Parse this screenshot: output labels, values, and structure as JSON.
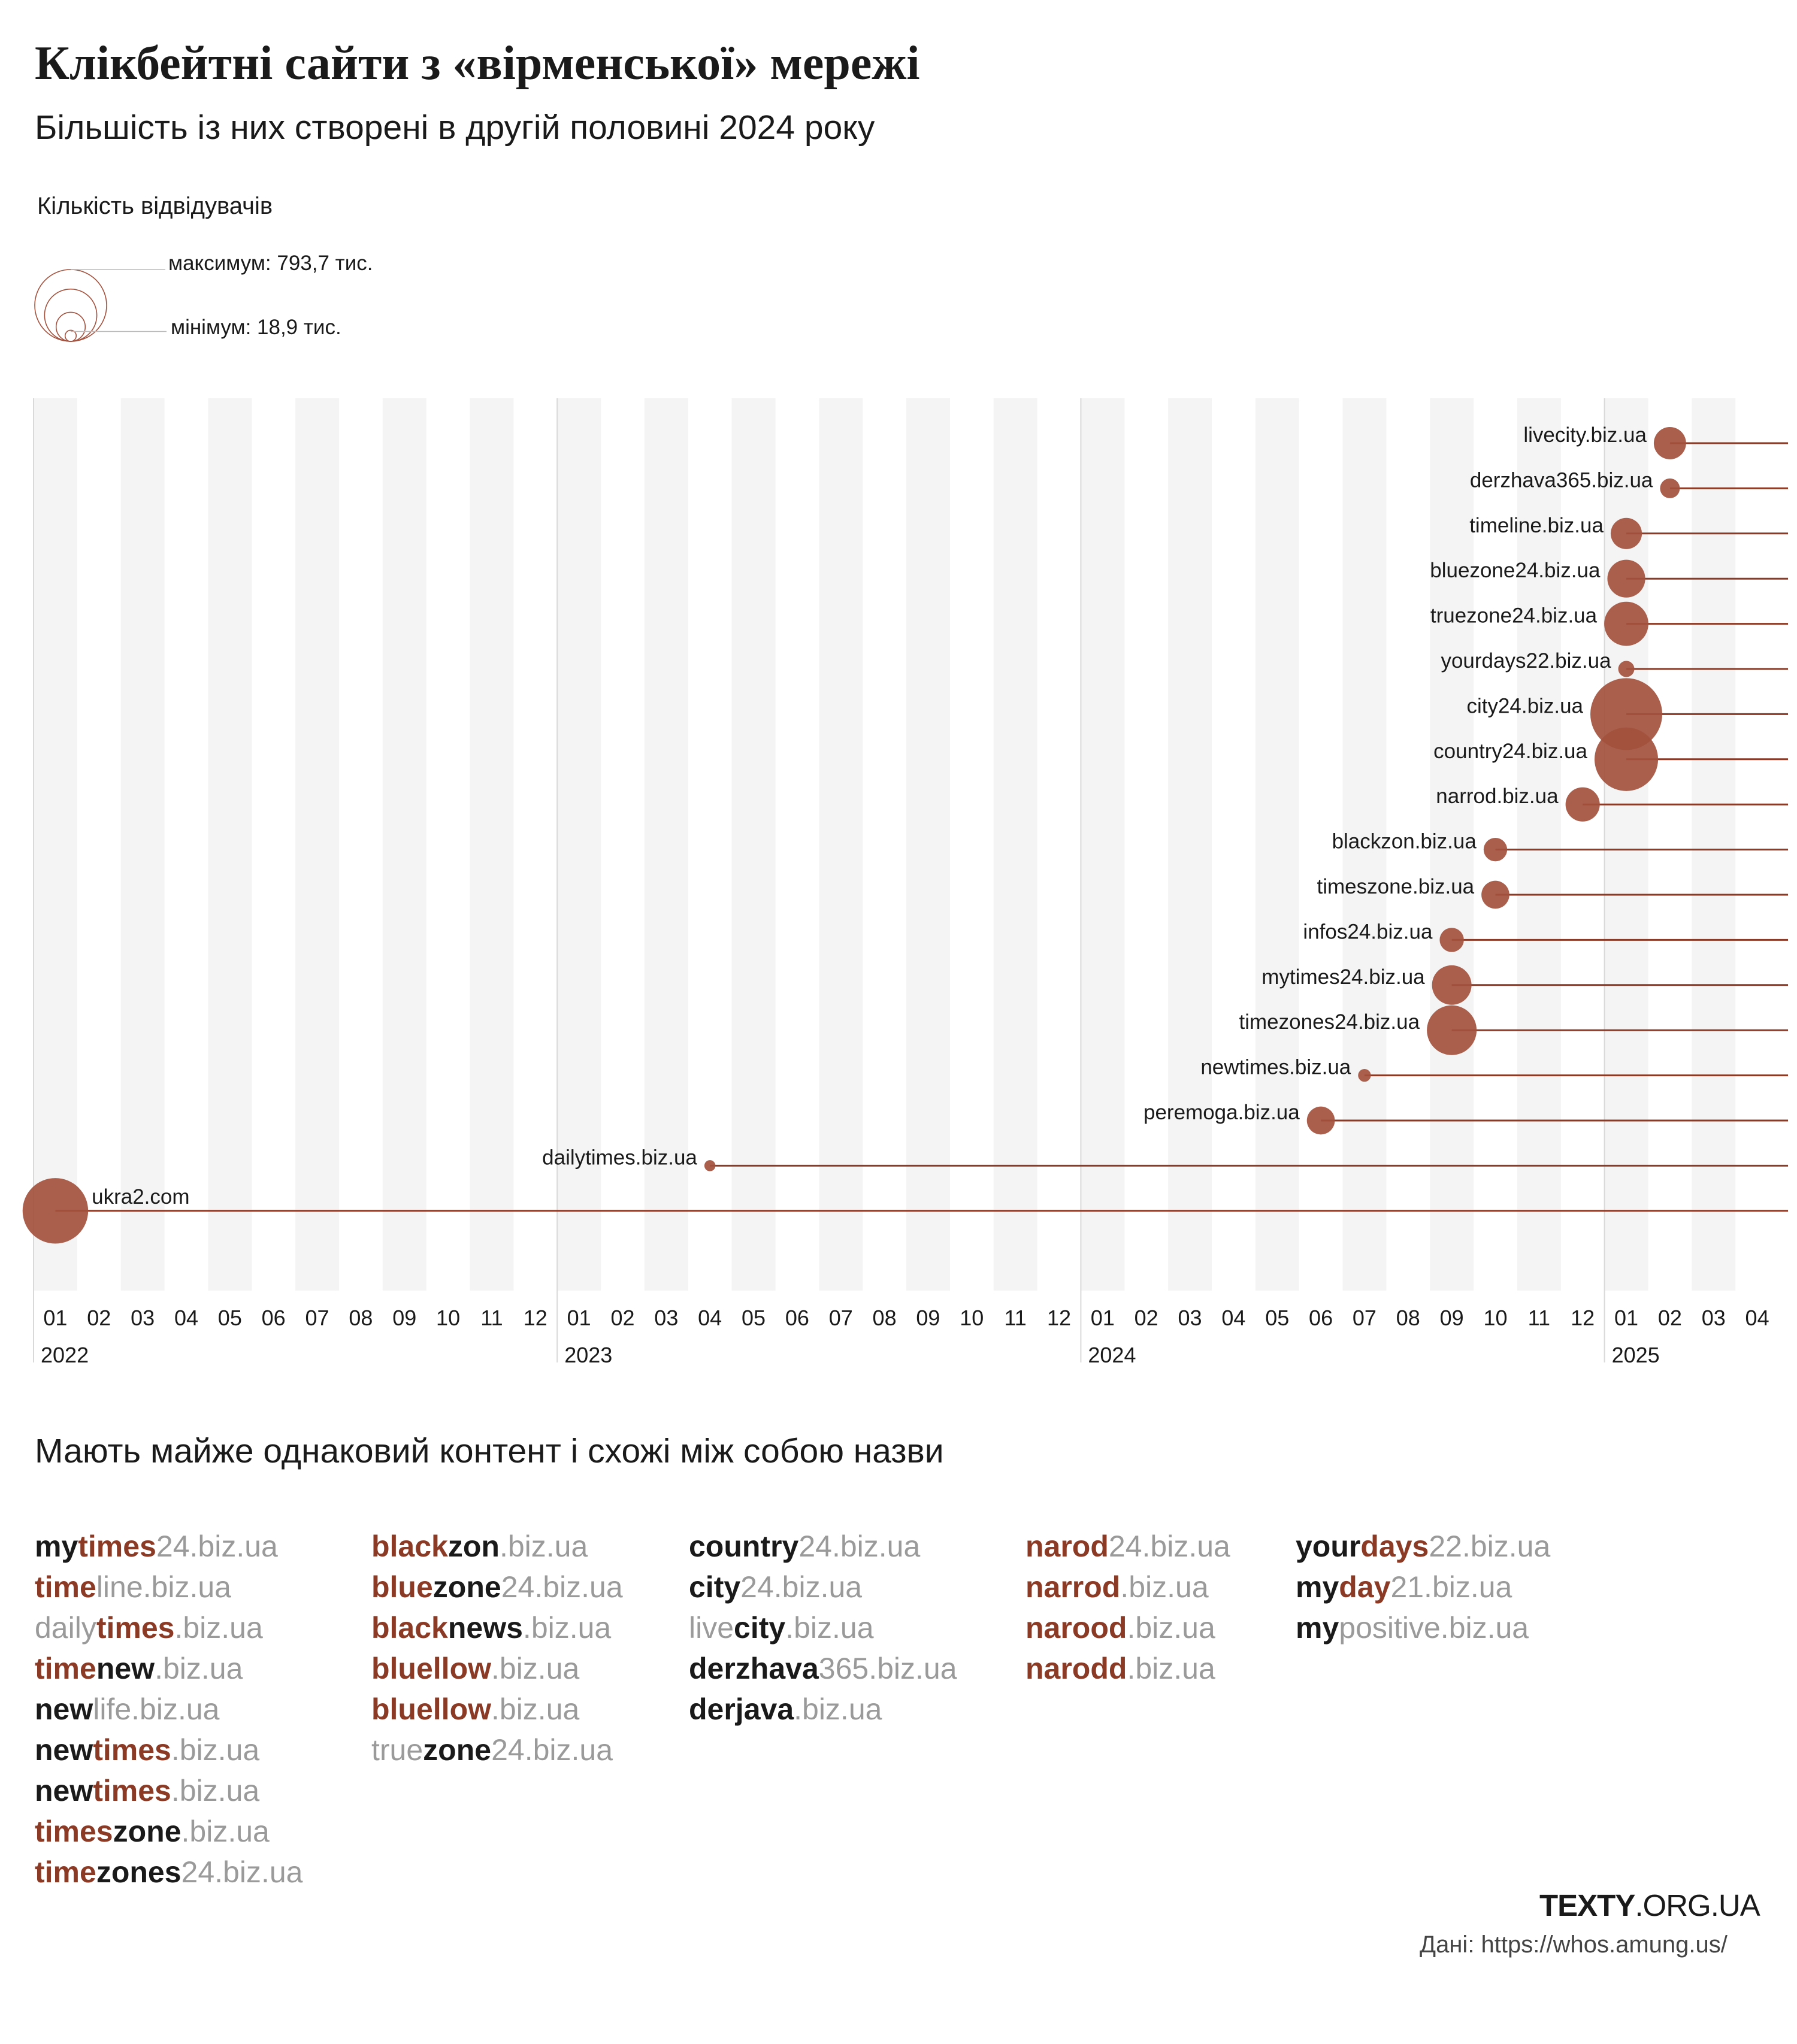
{
  "title": "Клікбейтні сайти з «вірменської» мережі",
  "subtitle": "Більшість із них створені в другій половині 2024 року",
  "legend": {
    "title": "Кількість відвідувачів",
    "max_label": "максимум: 793,7 тис.",
    "min_label": "мінімум: 18,9 тис.",
    "max_value": 793.7,
    "min_value": 18.9
  },
  "colors": {
    "accent": "#a3513d",
    "line": "#8b3a25",
    "band": "#f4f4f4",
    "grid": "#d9d9d9"
  },
  "chart_data": {
    "type": "scatter",
    "xaxis": {
      "months": [
        "01",
        "02",
        "03",
        "04",
        "05",
        "06",
        "07",
        "08",
        "09",
        "10",
        "11",
        "12",
        "01",
        "02",
        "03",
        "04",
        "05",
        "06",
        "07",
        "08",
        "09",
        "10",
        "11",
        "12",
        "01",
        "02",
        "03",
        "04",
        "05",
        "06",
        "07",
        "08",
        "09",
        "10",
        "11",
        "12",
        "01",
        "02",
        "03",
        "04"
      ],
      "years": [
        "2022",
        "2023",
        "2024",
        "2025"
      ]
    },
    "size_measure": "visitors (thousands)",
    "series": [
      {
        "name": "livecity.biz.ua",
        "date": "2025-02",
        "size": 160
      },
      {
        "name": "derzhava365.biz.ua",
        "date": "2025-02",
        "size": 60
      },
      {
        "name": "timeline.biz.ua",
        "date": "2025-01",
        "size": 150
      },
      {
        "name": "bluezone24.biz.ua",
        "date": "2025-01",
        "size": 220
      },
      {
        "name": "truezone24.biz.ua",
        "date": "2025-01",
        "size": 300
      },
      {
        "name": "yourdays22.biz.ua",
        "date": "2025-01",
        "size": 40
      },
      {
        "name": "city24.biz.ua",
        "date": "2025-01",
        "size": 793.7
      },
      {
        "name": "country24.biz.ua",
        "date": "2025-01",
        "size": 620
      },
      {
        "name": "narrod.biz.ua",
        "date": "2024-12",
        "size": 180
      },
      {
        "name": "blackzon.biz.ua",
        "date": "2024-10",
        "size": 85
      },
      {
        "name": "timeszone.biz.ua",
        "date": "2024-10",
        "size": 120
      },
      {
        "name": "infos24.biz.ua",
        "date": "2024-09",
        "size": 90
      },
      {
        "name": "mytimes24.biz.ua",
        "date": "2024-09",
        "size": 240
      },
      {
        "name": "timezones24.biz.ua",
        "date": "2024-09",
        "size": 380
      },
      {
        "name": "newtimes.biz.ua",
        "date": "2024-07",
        "size": 25
      },
      {
        "name": "peremoga.biz.ua",
        "date": "2024-06",
        "size": 120
      },
      {
        "name": "dailytimes.biz.ua",
        "date": "2023-04",
        "size": 18.9
      },
      {
        "name": "ukra2.com",
        "date": "2022-01",
        "size": 660
      }
    ]
  },
  "section2_title": "Мають майже однаковий контент і схожі між собою назви",
  "name_columns": [
    [
      [
        [
          "my",
          "b"
        ],
        [
          "times",
          "r"
        ],
        [
          "24.biz.ua",
          "g"
        ]
      ],
      [
        [
          "time",
          "r"
        ],
        [
          "line.biz.ua",
          "g"
        ]
      ],
      [
        [
          "daily",
          "g"
        ],
        [
          "times",
          "r"
        ],
        [
          ".biz.ua",
          "g"
        ]
      ],
      [
        [
          "time",
          "r"
        ],
        [
          "new",
          "b"
        ],
        [
          ".biz.ua",
          "g"
        ]
      ],
      [
        [
          "new",
          "b"
        ],
        [
          "life.biz.ua",
          "g"
        ]
      ],
      [
        [
          "new",
          "b"
        ],
        [
          "times",
          "r"
        ],
        [
          ".biz.ua",
          "g"
        ]
      ],
      [
        [
          "new",
          "b"
        ],
        [
          "times",
          "r"
        ],
        [
          ".biz.ua",
          "g"
        ]
      ],
      [
        [
          "times",
          "r"
        ],
        [
          "zone",
          "b"
        ],
        [
          ".biz.ua",
          "g"
        ]
      ],
      [
        [
          "time",
          "r"
        ],
        [
          "zones",
          "b"
        ],
        [
          "24.biz.ua",
          "g"
        ]
      ]
    ],
    [
      [
        [
          "black",
          "r"
        ],
        [
          "zon",
          "b"
        ],
        [
          ".biz.ua",
          "g"
        ]
      ],
      [
        [
          "blue",
          "r"
        ],
        [
          "zone",
          "b"
        ],
        [
          "24.biz.ua",
          "g"
        ]
      ],
      [
        [
          "black",
          "r"
        ],
        [
          "news",
          "b"
        ],
        [
          ".biz.ua",
          "g"
        ]
      ],
      [
        [
          "bluellow",
          "r"
        ],
        [
          ".biz.ua",
          "g"
        ]
      ],
      [
        [
          "bluellow",
          "r"
        ],
        [
          ".biz.ua",
          "g"
        ]
      ],
      [
        [
          "true",
          "g"
        ],
        [
          "zone",
          "b"
        ],
        [
          "24.biz.ua",
          "g"
        ]
      ]
    ],
    [
      [
        [
          "country",
          "b"
        ],
        [
          "24.biz.ua",
          "g"
        ]
      ],
      [
        [
          "city",
          "b"
        ],
        [
          "24.biz.ua",
          "g"
        ]
      ],
      [
        [
          "live",
          "g"
        ],
        [
          "city",
          "b"
        ],
        [
          ".biz.ua",
          "g"
        ]
      ],
      [
        [
          "derzhava",
          "b"
        ],
        [
          "365.biz.ua",
          "g"
        ]
      ],
      [
        [
          "derjava",
          "b"
        ],
        [
          ".biz.ua",
          "g"
        ]
      ]
    ],
    [
      [
        [
          "narod",
          "r"
        ],
        [
          "24.biz.ua",
          "g"
        ]
      ],
      [
        [
          "narrod",
          "r"
        ],
        [
          ".biz.ua",
          "g"
        ]
      ],
      [
        [
          "narood",
          "r"
        ],
        [
          ".biz.ua",
          "g"
        ]
      ],
      [
        [
          "narodd",
          "r"
        ],
        [
          ".biz.ua",
          "g"
        ]
      ]
    ],
    [
      [
        [
          "your",
          "b"
        ],
        [
          "days",
          "r"
        ],
        [
          "22.biz.ua",
          "g"
        ]
      ],
      [
        [
          "my",
          "b"
        ],
        [
          "day",
          "r"
        ],
        [
          "21.biz.ua",
          "g"
        ]
      ],
      [
        [
          "my",
          "b"
        ],
        [
          "positive.biz.ua",
          "g"
        ]
      ]
    ]
  ],
  "logo": {
    "bold": "TEXTY",
    "light": ".ORG.UA"
  },
  "source": "Дані: https://whos.amung.us/"
}
